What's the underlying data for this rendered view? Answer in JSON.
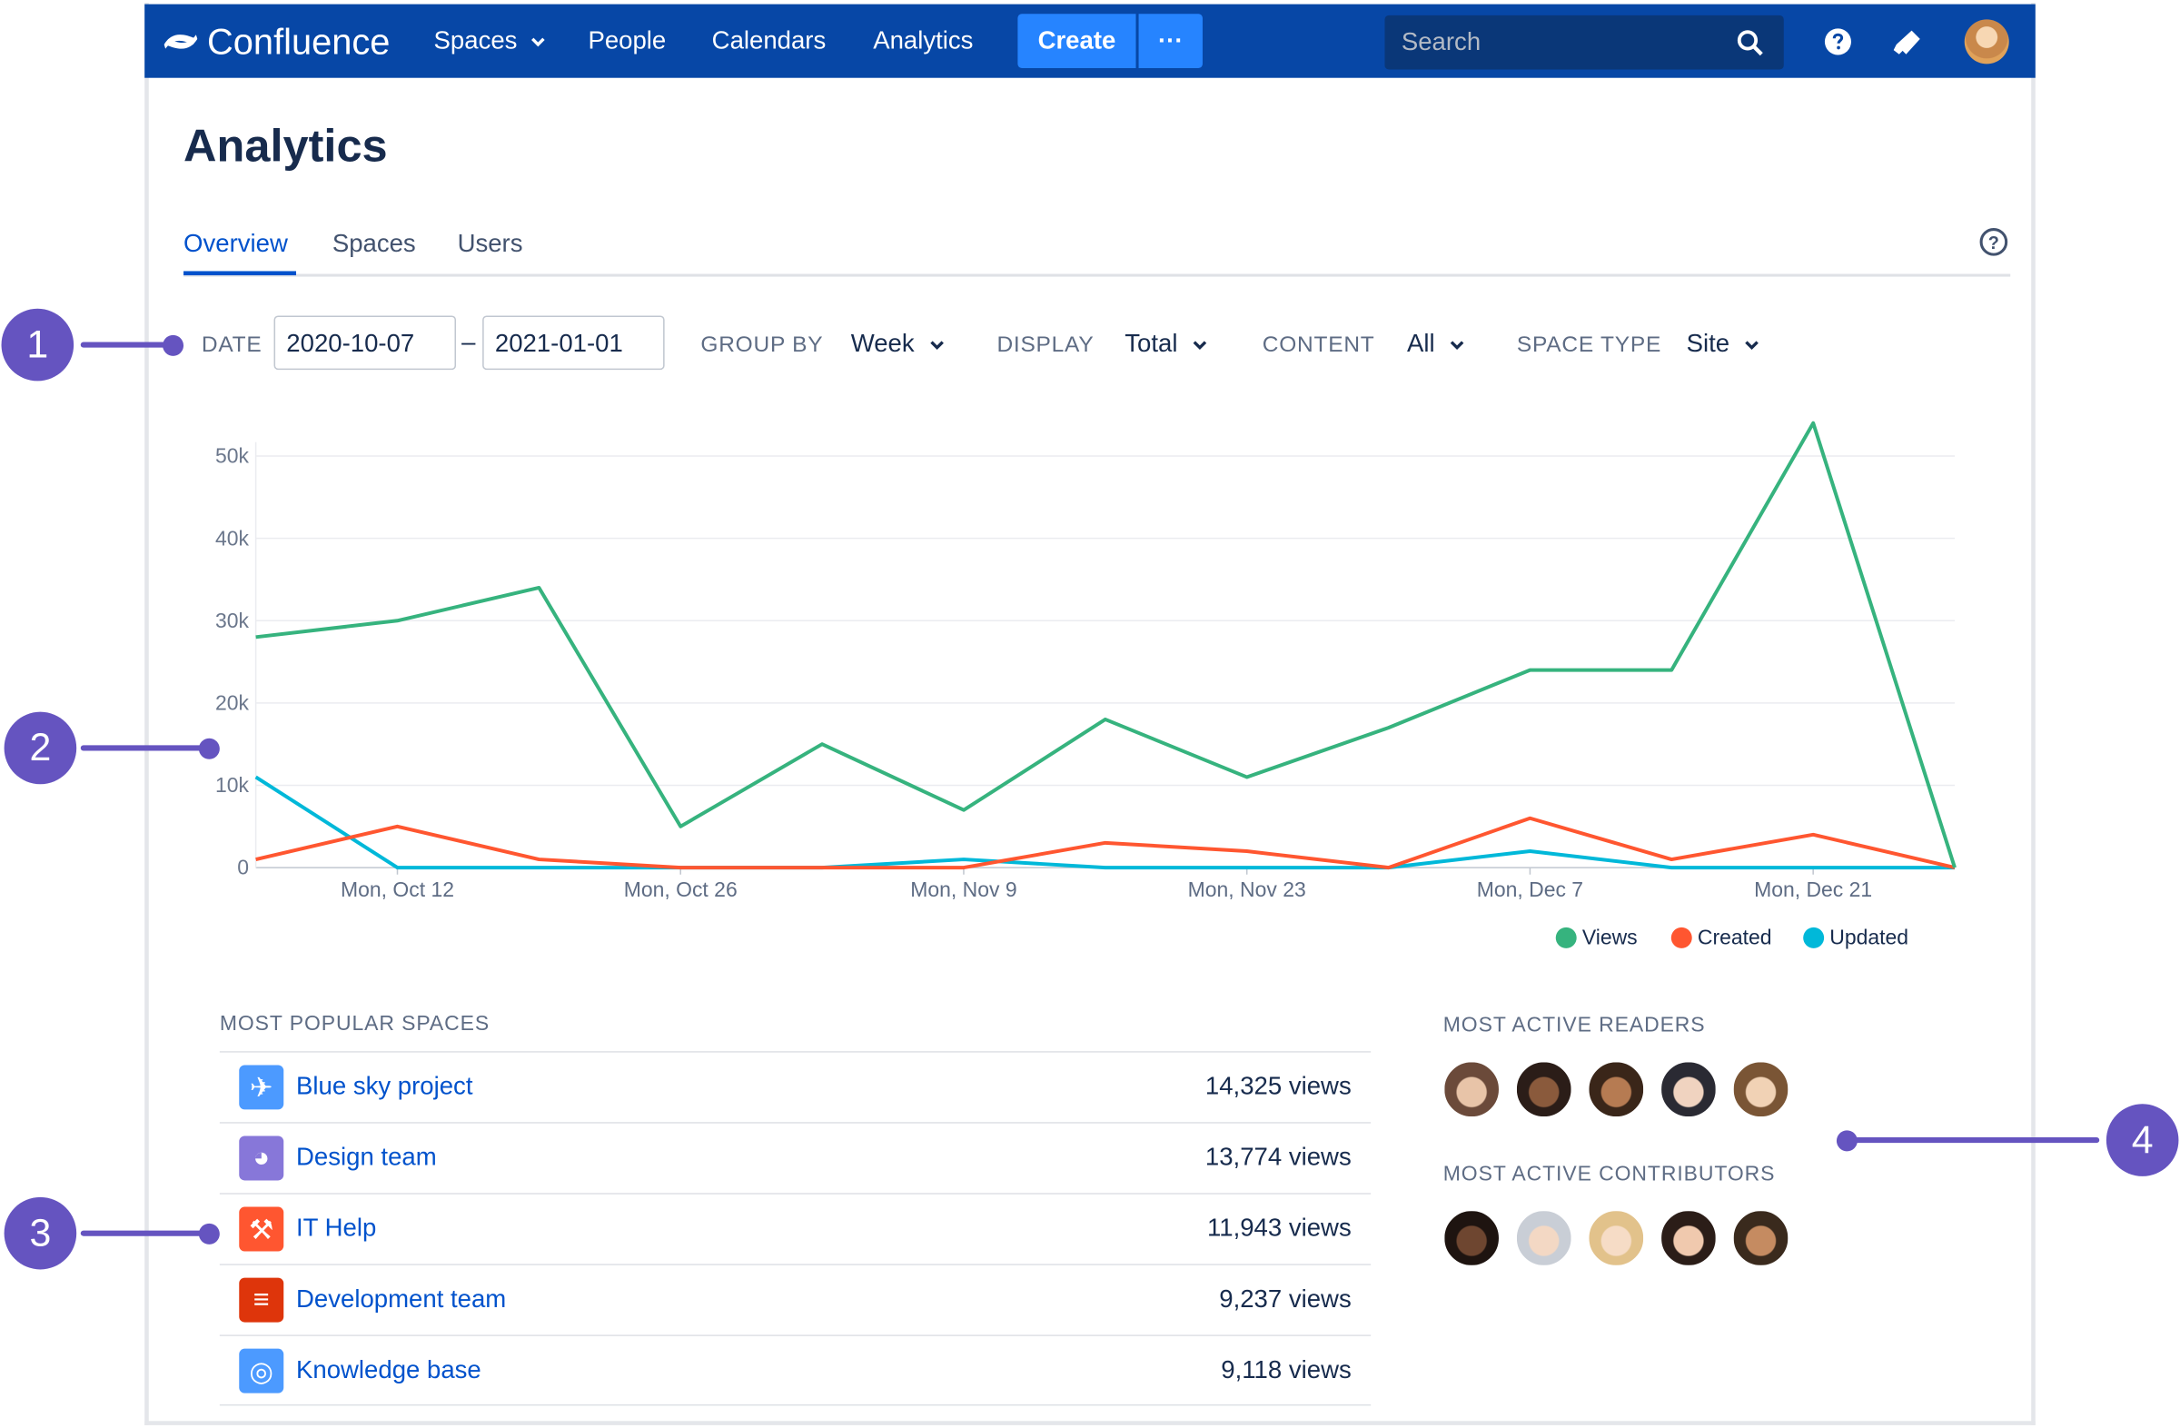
{
  "nav": {
    "product": "Confluence",
    "items": [
      "Spaces",
      "People",
      "Calendars",
      "Analytics"
    ],
    "create_label": "Create",
    "more_label": "···",
    "search_placeholder": "Search"
  },
  "page": {
    "title": "Analytics",
    "tabs": [
      "Overview",
      "Spaces",
      "Users"
    ]
  },
  "filters": {
    "date_label": "DATE",
    "date_from": "2020-10-07",
    "date_separator": "–",
    "date_to": "2021-01-01",
    "group_by_label": "GROUP BY",
    "group_by_value": "Week",
    "display_label": "DISPLAY",
    "display_value": "Total",
    "content_label": "CONTENT",
    "content_value": "All",
    "space_type_label": "SPACE TYPE",
    "space_type_value": "Site"
  },
  "chart_data": {
    "type": "line",
    "x_tick_labels": [
      "Mon, Oct 12",
      "Mon, Oct 26",
      "Mon, Nov 9",
      "Mon, Nov 23",
      "Mon, Dec 7",
      "Mon, Dec 21"
    ],
    "y_tick_labels": [
      "0",
      "10k",
      "20k",
      "30k",
      "40k",
      "50k"
    ],
    "ylim": [
      0,
      54000
    ],
    "grid": true,
    "legend_position": "bottom-right",
    "x": [
      "2020-10-05",
      "2020-10-12",
      "2020-10-19",
      "2020-10-26",
      "2020-11-02",
      "2020-11-09",
      "2020-11-16",
      "2020-11-23",
      "2020-11-30",
      "2020-12-07",
      "2020-12-14",
      "2020-12-21",
      "2020-12-28"
    ],
    "series": [
      {
        "name": "Views",
        "color": "#36b37e",
        "values": [
          28000,
          30000,
          34000,
          5000,
          15000,
          7000,
          18000,
          11000,
          17000,
          24000,
          24000,
          54000,
          0
        ]
      },
      {
        "name": "Created",
        "color": "#ff5630",
        "values": [
          1000,
          5000,
          1000,
          0,
          0,
          0,
          3000,
          2000,
          0,
          6000,
          1000,
          4000,
          0
        ]
      },
      {
        "name": "Updated",
        "color": "#00b8d9",
        "values": [
          11000,
          0,
          0,
          0,
          0,
          1000,
          0,
          0,
          0,
          2000,
          0,
          0,
          0
        ]
      }
    ]
  },
  "popular_spaces": {
    "title": "MOST POPULAR SPACES",
    "rows": [
      {
        "name": "Blue sky project",
        "views": "14,325 views",
        "icon": "rocket-icon",
        "color": "#4c9aff"
      },
      {
        "name": "Design team",
        "views": "13,774 views",
        "icon": "parrot-icon",
        "color": "#8777d9"
      },
      {
        "name": "IT Help",
        "views": "11,943 views",
        "icon": "wrench-icon",
        "color": "#ff5630"
      },
      {
        "name": "Development team",
        "views": "9,237 views",
        "icon": "code-icon",
        "color": "#de350b"
      },
      {
        "name": "Knowledge base",
        "views": "9,118 views",
        "icon": "lifebuoy-icon",
        "color": "#4c9aff"
      }
    ]
  },
  "readers": {
    "title": "MOST ACTIVE READERS",
    "count": 5
  },
  "contributors": {
    "title": "MOST ACTIVE CONTRIBUTORS",
    "count": 5
  },
  "callouts": [
    "1",
    "2",
    "3",
    "4"
  ]
}
